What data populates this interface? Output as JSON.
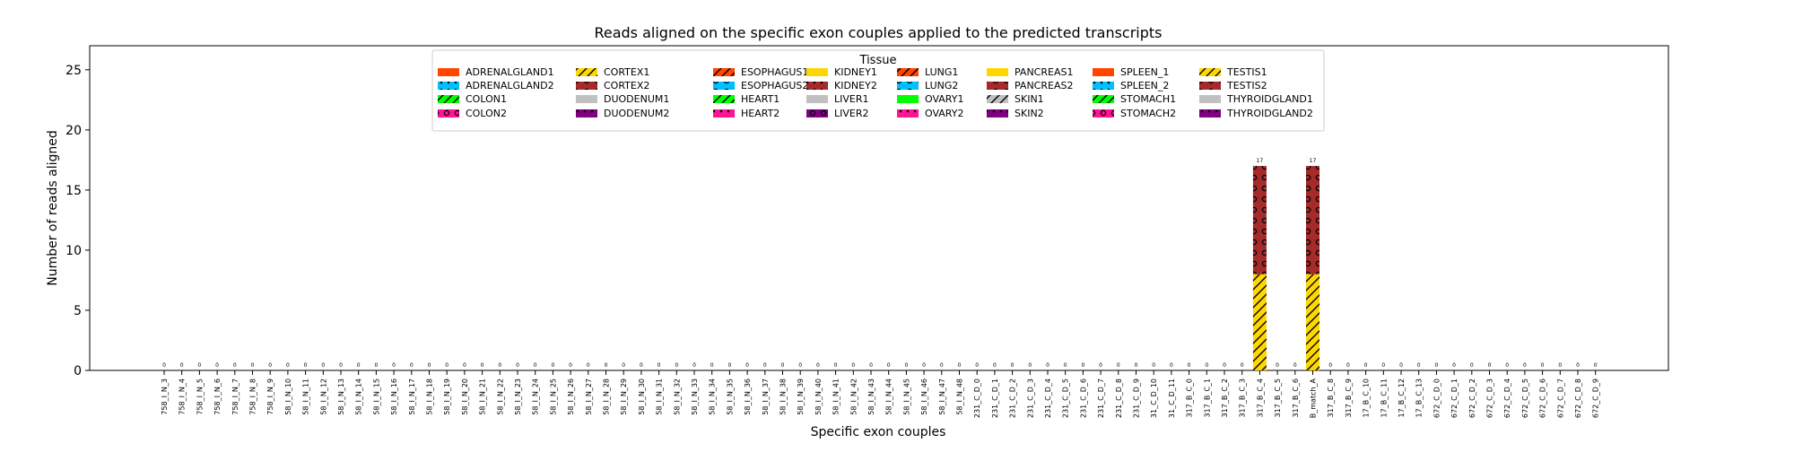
{
  "chart_data": {
    "type": "bar",
    "title": "Reads aligned on the specific exon couples applied to the predicted transcripts",
    "xlabel": "Specific exon couples",
    "ylabel": "Number of reads aligned",
    "ylim": [
      0,
      27
    ],
    "yticks": [
      0,
      5,
      10,
      15,
      20,
      25
    ],
    "grid": false,
    "stacked": true,
    "legend": {
      "title": "Tissue",
      "placement": "top-center",
      "columns": 8
    },
    "categories": [
      "758_I_N_3",
      "758_I_N_4",
      "758_I_N_5",
      "758_I_N_6",
      "758_I_N_7",
      "758_I_N_8",
      "758_I_N_9",
      "58_I_N_10",
      "58_I_N_11",
      "58_I_N_12",
      "58_I_N_13",
      "58_I_N_14",
      "58_I_N_15",
      "58_I_N_16",
      "58_I_N_17",
      "58_I_N_18",
      "58_I_N_19",
      "58_I_N_20",
      "58_I_N_21",
      "58_I_N_22",
      "58_I_N_23",
      "58_I_N_24",
      "58_I_N_25",
      "58_I_N_26",
      "58_I_N_27",
      "58_I_N_28",
      "58_I_N_29",
      "58_I_N_30",
      "58_I_N_31",
      "58_I_N_32",
      "58_I_N_33",
      "58_I_N_34",
      "58_I_N_35",
      "58_I_N_36",
      "58_I_N_37",
      "58_I_N_38",
      "58_I_N_39",
      "58_I_N_40",
      "58_I_N_41",
      "58_I_N_42",
      "58_I_N_43",
      "58_I_N_44",
      "58_I_N_45",
      "58_I_N_46",
      "58_I_N_47",
      "58_I_N_48",
      "231_C_D_0",
      "231_C_D_1",
      "231_C_D_2",
      "231_C_D_3",
      "231_C_D_4",
      "231_C_D_5",
      "231_C_D_6",
      "231_C_D_7",
      "231_C_D_8",
      "231_C_D_9",
      "31_C_D_10",
      "31_C_D_11",
      "317_B_C_0",
      "317_B_C_1",
      "317_B_C_2",
      "317_B_C_3",
      "317_B_C_4",
      "317_B_C_5",
      "317_B_C_6",
      "B_match_A",
      "317_B_C_8",
      "317_B_C_9",
      "17_B_C_10",
      "17_B_C_11",
      "17_B_C_12",
      "17_B_C_13",
      "672_C_D_0",
      "672_C_D_1",
      "672_C_D_2",
      "672_C_D_3",
      "672_C_D_4",
      "672_C_D_5",
      "672_C_D_6",
      "672_C_D_7",
      "672_C_D_8",
      "672_C_D_9"
    ],
    "totals": [
      0,
      0,
      0,
      0,
      0,
      0,
      0,
      0,
      0,
      0,
      0,
      0,
      0,
      0,
      0,
      0,
      0,
      0,
      0,
      0,
      0,
      0,
      0,
      0,
      0,
      0,
      0,
      0,
      0,
      0,
      0,
      0,
      0,
      0,
      0,
      0,
      0,
      0,
      0,
      0,
      0,
      0,
      0,
      0,
      0,
      0,
      0,
      0,
      0,
      0,
      0,
      0,
      0,
      0,
      0,
      0,
      0,
      0,
      0,
      0,
      0,
      0,
      17,
      0,
      0,
      17,
      0,
      0,
      0,
      0,
      0,
      0,
      0,
      0,
      0,
      0,
      0,
      0,
      0,
      0,
      0,
      0
    ],
    "series": [
      {
        "name": "TESTIS1",
        "color": "#ffd700",
        "pattern": "slash",
        "points": [
          {
            "category": "317_B_C_4",
            "value": 8
          },
          {
            "category": "B_match_A",
            "value": 8
          }
        ]
      },
      {
        "name": "TESTIS2",
        "color": "#a52a2a",
        "pattern": "circles",
        "points": [
          {
            "category": "317_B_C_4",
            "value": 9
          },
          {
            "category": "B_match_A",
            "value": 9
          }
        ]
      }
    ],
    "legend_entries": [
      {
        "name": "ADRENALGLAND1",
        "color": "#ff4500",
        "pattern": "none"
      },
      {
        "name": "ADRENALGLAND2",
        "color": "#00bfff",
        "pattern": "dots"
      },
      {
        "name": "COLON1",
        "color": "#00ff00",
        "pattern": "slash"
      },
      {
        "name": "COLON2",
        "color": "#ff1493",
        "pattern": "circles"
      },
      {
        "name": "CORTEX1",
        "color": "#ffd700",
        "pattern": "slash"
      },
      {
        "name": "CORTEX2",
        "color": "#a52a2a",
        "pattern": "circles"
      },
      {
        "name": "DUODENUM1",
        "color": "#c0c0c0",
        "pattern": "none"
      },
      {
        "name": "DUODENUM2",
        "color": "#800080",
        "pattern": "dots"
      },
      {
        "name": "ESOPHAGUS1",
        "color": "#ff4500",
        "pattern": "slash"
      },
      {
        "name": "ESOPHAGUS2",
        "color": "#00bfff",
        "pattern": "circles"
      },
      {
        "name": "HEART1",
        "color": "#00ff00",
        "pattern": "slash"
      },
      {
        "name": "HEART2",
        "color": "#ff1493",
        "pattern": "dots"
      },
      {
        "name": "KIDNEY1",
        "color": "#ffd700",
        "pattern": "none"
      },
      {
        "name": "KIDNEY2",
        "color": "#a52a2a",
        "pattern": "dots"
      },
      {
        "name": "LIVER1",
        "color": "#c0c0c0",
        "pattern": "none"
      },
      {
        "name": "LIVER2",
        "color": "#800080",
        "pattern": "circles"
      },
      {
        "name": "LUNG1",
        "color": "#ff4500",
        "pattern": "slash"
      },
      {
        "name": "LUNG2",
        "color": "#00bfff",
        "pattern": "circles"
      },
      {
        "name": "OVARY1",
        "color": "#00ff00",
        "pattern": "none"
      },
      {
        "name": "OVARY2",
        "color": "#ff1493",
        "pattern": "dots"
      },
      {
        "name": "PANCREAS1",
        "color": "#ffd700",
        "pattern": "none"
      },
      {
        "name": "PANCREAS2",
        "color": "#a52a2a",
        "pattern": "circles"
      },
      {
        "name": "SKIN1",
        "color": "#c0c0c0",
        "pattern": "slash"
      },
      {
        "name": "SKIN2",
        "color": "#800080",
        "pattern": "dots"
      },
      {
        "name": "SPLEEN_1",
        "color": "#ff4500",
        "pattern": "none"
      },
      {
        "name": "SPLEEN_2",
        "color": "#00bfff",
        "pattern": "dots"
      },
      {
        "name": "STOMACH1",
        "color": "#00ff00",
        "pattern": "slash"
      },
      {
        "name": "STOMACH2",
        "color": "#ff1493",
        "pattern": "circles"
      },
      {
        "name": "TESTIS1",
        "color": "#ffd700",
        "pattern": "slash"
      },
      {
        "name": "TESTIS2",
        "color": "#a52a2a",
        "pattern": "circles"
      },
      {
        "name": "THYROIDGLAND1",
        "color": "#c0c0c0",
        "pattern": "none"
      },
      {
        "name": "THYROIDGLAND2",
        "color": "#800080",
        "pattern": "dots"
      }
    ]
  }
}
